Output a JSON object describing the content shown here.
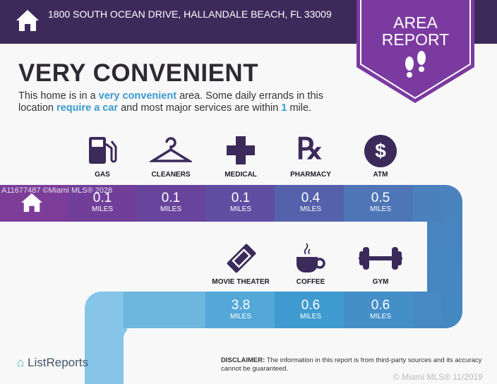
{
  "header": {
    "address": "1800 SOUTH OCEAN DRIVE, HALLANDALE BEACH, FL 33009",
    "badge_line1": "AREA",
    "badge_line2": "REPORT"
  },
  "main": {
    "title": "VERY CONVENIENT",
    "desc": {
      "p1": "This home is in a ",
      "h1": "very convenient",
      "p2": " area. Some daily errands in this location ",
      "h2": "require a car",
      "p3": " and most major services are within ",
      "h3": "1",
      "p4": " mile."
    }
  },
  "amenities_row1": [
    {
      "label": "GAS",
      "value": "0.1",
      "unit": "MILES",
      "icon": "gas-pump-icon"
    },
    {
      "label": "CLEANERS",
      "value": "0.1",
      "unit": "MILES",
      "icon": "hanger-icon"
    },
    {
      "label": "MEDICAL",
      "value": "0.1",
      "unit": "MILES",
      "icon": "medical-cross-icon"
    },
    {
      "label": "PHARMACY",
      "value": "0.4",
      "unit": "MILES",
      "icon": "rx-icon"
    },
    {
      "label": "ATM",
      "value": "0.5",
      "unit": "MILES",
      "icon": "dollar-icon"
    }
  ],
  "amenities_row2": [
    {
      "label": "MOVIE THEATER",
      "value": "3.8",
      "unit": "MILES",
      "icon": "ticket-icon"
    },
    {
      "label": "COFFEE",
      "value": "0.6",
      "unit": "MILES",
      "icon": "coffee-icon"
    },
    {
      "label": "GYM",
      "value": "0.6",
      "unit": "MILES",
      "icon": "dumbbell-icon"
    }
  ],
  "watermark": "A11677487 ©Miami MLS® 2026",
  "footer": {
    "logo": "ListReports",
    "disclaimer_label": "DISCLAIMER:",
    "disclaimer": " The information in this report is from third-party sources and its accuracy cannot be guaranteed.",
    "copyright": "© Miami MLS® 11/2019"
  },
  "colors": {
    "header": "#3d2a5b",
    "badge": "#7b3aa0",
    "accent": "#3a9bd0"
  }
}
